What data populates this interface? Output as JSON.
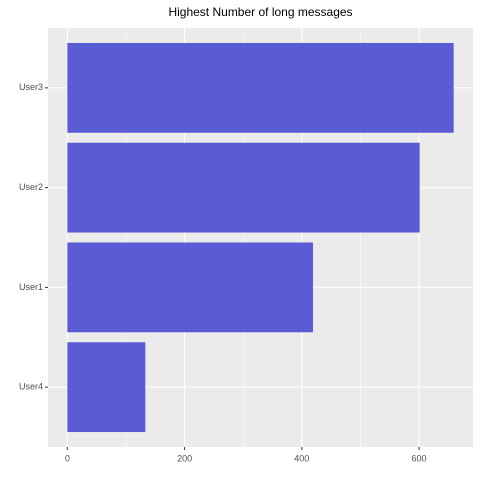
{
  "chart_data": {
    "type": "barh",
    "title": "Highest Number of long messages",
    "categories": [
      "User4",
      "User1",
      "User2",
      "User3"
    ],
    "values": [
      133,
      419,
      601,
      659
    ],
    "color": "#5b5bd6",
    "xlim": [
      -33,
      692
    ],
    "xticks": [
      0,
      200,
      400,
      600
    ],
    "minor_xticks": [
      100,
      300,
      500
    ],
    "grid": true
  }
}
